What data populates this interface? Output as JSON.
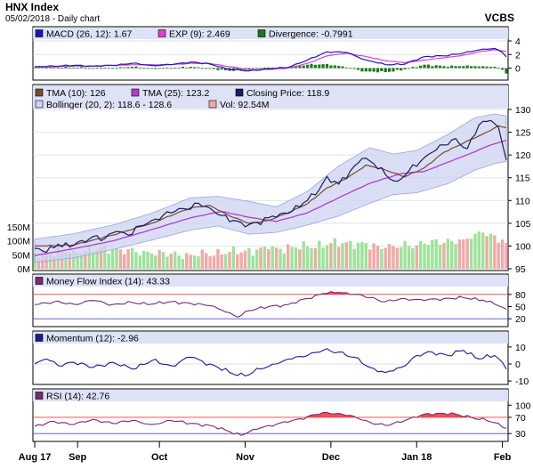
{
  "header": {
    "title": "HNX Index",
    "subtitle": "05/02/2018 - Daily chart",
    "brand": "VCBS"
  },
  "x_axis": {
    "labels": [
      {
        "text": "Aug 17",
        "idx": 0
      },
      {
        "text": "Sep",
        "idx": 11
      },
      {
        "text": "Oct",
        "idx": 32
      },
      {
        "text": "Nov",
        "idx": 54
      },
      {
        "text": "Dec",
        "idx": 76
      },
      {
        "text": "Jan 18",
        "idx": 98
      },
      {
        "text": "Feb",
        "idx": 120
      }
    ]
  },
  "colors": {
    "panel_bg": "#ffffff",
    "panel_border": "#000000",
    "closing": "#1c1c5c",
    "tma10": "#7a4a2a",
    "tma25": "#b43cc8",
    "bollinger_fill": "#cdd3f2",
    "bollinger_edge": "#9aa4de",
    "vol_up": "#9ee29a",
    "vol_down": "#f2a8a8",
    "macd": "#1a1ab4",
    "exp": "#e040d0",
    "divergence": "#1a7a1a",
    "mfi": "#7a2a6a",
    "mfi_fill": "#ff4a5a",
    "momentum": "#1a1a9a",
    "rsi": "#7a2a6a",
    "rsi_fill": "#ff4a5a",
    "ref_red": "#e04040",
    "ref_blue": "#4a4ad0"
  },
  "chart_data": [
    {
      "type": "line",
      "title": "MACD",
      "legend": [
        {
          "label": "MACD (26, 12): 1.67",
          "color": "#1a1ab4"
        },
        {
          "label": "EXP (9): 2.469",
          "color": "#e040d0"
        },
        {
          "label": "Divergence: -0.7991",
          "color": "#1a7a1a"
        }
      ],
      "ylim": [
        -1.5,
        4
      ],
      "yticks": [
        {
          "v": 4,
          "label": "4"
        },
        {
          "v": 2,
          "label": "2"
        },
        {
          "v": 0,
          "label": "0"
        }
      ],
      "macd_keys": [
        [
          0,
          0.2
        ],
        [
          5,
          0.3
        ],
        [
          10,
          0.4
        ],
        [
          15,
          0.3
        ],
        [
          20,
          0.4
        ],
        [
          25,
          0.7
        ],
        [
          30,
          0.4
        ],
        [
          35,
          0.5
        ],
        [
          40,
          0.9
        ],
        [
          45,
          0.6
        ],
        [
          50,
          -0.2
        ],
        [
          55,
          -0.4
        ],
        [
          60,
          -0.1
        ],
        [
          65,
          0.1
        ],
        [
          70,
          1.2
        ],
        [
          75,
          2.4
        ],
        [
          80,
          2.3
        ],
        [
          85,
          1.2
        ],
        [
          90,
          0.5
        ],
        [
          95,
          0.6
        ],
        [
          100,
          1.7
        ],
        [
          105,
          1.8
        ],
        [
          110,
          2.2
        ],
        [
          115,
          2.8
        ],
        [
          118,
          2.9
        ],
        [
          120,
          2.3
        ],
        [
          121,
          1.67
        ]
      ],
      "exp_keys": [
        [
          0,
          0.1
        ],
        [
          5,
          0.2
        ],
        [
          10,
          0.3
        ],
        [
          15,
          0.3
        ],
        [
          20,
          0.4
        ],
        [
          25,
          0.5
        ],
        [
          30,
          0.5
        ],
        [
          35,
          0.5
        ],
        [
          40,
          0.7
        ],
        [
          45,
          0.7
        ],
        [
          50,
          0.2
        ],
        [
          55,
          -0.2
        ],
        [
          60,
          -0.2
        ],
        [
          65,
          0.0
        ],
        [
          70,
          0.7
        ],
        [
          75,
          1.8
        ],
        [
          80,
          2.2
        ],
        [
          85,
          1.7
        ],
        [
          90,
          1.1
        ],
        [
          95,
          0.8
        ],
        [
          100,
          1.2
        ],
        [
          105,
          1.5
        ],
        [
          110,
          1.9
        ],
        [
          115,
          2.5
        ],
        [
          118,
          2.7
        ],
        [
          120,
          2.55
        ],
        [
          121,
          2.469
        ]
      ]
    },
    {
      "type": "line",
      "title": "Price",
      "legend": [
        {
          "label": "TMA (10): 126",
          "color": "#7a4a2a"
        },
        {
          "label": "TMA (25): 123.2",
          "color": "#b43cc8"
        },
        {
          "label": "Closing Price: 118.9",
          "color": "#1c1c5c"
        },
        {
          "label": "Bollinger (20, 2): 118.6 - 128.6",
          "color": "#cdd3f2"
        },
        {
          "label": "Vol: 92.54M",
          "color": "#f2a8a8"
        }
      ],
      "ylim": [
        95,
        130
      ],
      "yticks": [
        {
          "v": 130,
          "label": "130"
        },
        {
          "v": 125,
          "label": "125"
        },
        {
          "v": 120,
          "label": "120"
        },
        {
          "v": 115,
          "label": "115"
        },
        {
          "v": 110,
          "label": "110"
        },
        {
          "v": 105,
          "label": "105"
        },
        {
          "v": 100,
          "label": "100"
        },
        {
          "v": 95,
          "label": "95"
        }
      ],
      "vol_ticks": [
        {
          "v": 150,
          "label": "150M"
        },
        {
          "v": 100,
          "label": "100M"
        },
        {
          "v": 50,
          "label": "50M"
        },
        {
          "v": 0,
          "label": "0M"
        }
      ],
      "close_keys": [
        [
          0,
          99.5
        ],
        [
          3,
          98.6
        ],
        [
          6,
          100.4
        ],
        [
          9,
          99.8
        ],
        [
          12,
          101.2
        ],
        [
          15,
          102.1
        ],
        [
          18,
          101.6
        ],
        [
          21,
          103.2
        ],
        [
          24,
          102.4
        ],
        [
          27,
          104.4
        ],
        [
          30,
          105.6
        ],
        [
          33,
          106.8
        ],
        [
          36,
          107.6
        ],
        [
          39,
          108.1
        ],
        [
          42,
          109.4
        ],
        [
          45,
          108.3
        ],
        [
          48,
          106.7
        ],
        [
          51,
          105.6
        ],
        [
          54,
          104.2
        ],
        [
          57,
          105.2
        ],
        [
          60,
          106.2
        ],
        [
          63,
          107.1
        ],
        [
          66,
          107.6
        ],
        [
          69,
          109.5
        ],
        [
          72,
          111.2
        ],
        [
          75,
          115.3
        ],
        [
          78,
          113.6
        ],
        [
          81,
          116.5
        ],
        [
          84,
          119.2
        ],
        [
          87,
          118.1
        ],
        [
          90,
          115.7
        ],
        [
          93,
          114.2
        ],
        [
          96,
          116.5
        ],
        [
          99,
          118.6
        ],
        [
          102,
          120.6
        ],
        [
          105,
          122.2
        ],
        [
          108,
          123.6
        ],
        [
          111,
          121.4
        ],
        [
          114,
          126.6
        ],
        [
          117,
          127.6
        ],
        [
          119,
          126.1
        ],
        [
          121,
          118.9
        ]
      ],
      "tma10_keys": [
        [
          0,
          100.0
        ],
        [
          10,
          100.2
        ],
        [
          20,
          102.4
        ],
        [
          30,
          105.0
        ],
        [
          40,
          108.4
        ],
        [
          45,
          108.9
        ],
        [
          50,
          106.6
        ],
        [
          55,
          105.0
        ],
        [
          60,
          105.6
        ],
        [
          65,
          107.3
        ],
        [
          70,
          109.3
        ],
        [
          75,
          112.8
        ],
        [
          80,
          114.8
        ],
        [
          85,
          117.8
        ],
        [
          90,
          116.7
        ],
        [
          95,
          115.2
        ],
        [
          100,
          117.2
        ],
        [
          105,
          120.6
        ],
        [
          110,
          122.6
        ],
        [
          115,
          124.6
        ],
        [
          119,
          126.4
        ],
        [
          121,
          126.0
        ]
      ],
      "tma25_keys": [
        [
          0,
          97.9
        ],
        [
          10,
          99.4
        ],
        [
          20,
          101.1
        ],
        [
          30,
          103.6
        ],
        [
          40,
          106.2
        ],
        [
          48,
          107.6
        ],
        [
          55,
          106.3
        ],
        [
          62,
          105.4
        ],
        [
          70,
          107.3
        ],
        [
          78,
          110.6
        ],
        [
          86,
          113.8
        ],
        [
          94,
          115.9
        ],
        [
          100,
          116.4
        ],
        [
          106,
          118.4
        ],
        [
          112,
          120.4
        ],
        [
          117,
          122.2
        ],
        [
          121,
          123.2
        ]
      ],
      "bb_keys": [
        [
          0,
          96.4,
          101.5
        ],
        [
          10,
          97.4,
          102.7
        ],
        [
          20,
          99.2,
          104.6
        ],
        [
          30,
          101.3,
          107.2
        ],
        [
          40,
          103.5,
          110.6
        ],
        [
          47,
          104.4,
          110.9
        ],
        [
          55,
          102.6,
          109.8
        ],
        [
          62,
          103.0,
          108.6
        ],
        [
          70,
          104.6,
          112.0
        ],
        [
          78,
          106.6,
          117.6
        ],
        [
          86,
          109.4,
          121.6
        ],
        [
          92,
          111.3,
          120.2
        ],
        [
          98,
          111.7,
          121.0
        ],
        [
          106,
          113.7,
          124.5
        ],
        [
          113,
          116.7,
          128.2
        ],
        [
          118,
          118.1,
          129.0
        ],
        [
          121,
          118.6,
          128.6
        ]
      ],
      "vol_keys": [
        [
          0,
          55
        ],
        [
          10,
          65
        ],
        [
          20,
          70
        ],
        [
          30,
          55
        ],
        [
          40,
          50
        ],
        [
          50,
          60
        ],
        [
          60,
          70
        ],
        [
          70,
          80
        ],
        [
          80,
          95
        ],
        [
          90,
          75
        ],
        [
          100,
          90
        ],
        [
          110,
          105
        ],
        [
          115,
          130
        ],
        [
          121,
          92.54
        ]
      ]
    },
    {
      "type": "area",
      "title": "Money Flow Index",
      "legend": [
        {
          "label": "Money Flow Index (14): 43.33",
          "color": "#7a2a6a"
        }
      ],
      "ylim": [
        5,
        95
      ],
      "yticks": [
        {
          "v": 80,
          "label": "80"
        },
        {
          "v": 50,
          "label": "50"
        },
        {
          "v": 20,
          "label": "20"
        }
      ],
      "ref": [
        80,
        20
      ],
      "keys": [
        [
          0,
          55
        ],
        [
          5,
          62
        ],
        [
          10,
          56
        ],
        [
          15,
          65
        ],
        [
          20,
          55
        ],
        [
          25,
          60
        ],
        [
          30,
          56
        ],
        [
          35,
          62
        ],
        [
          40,
          58
        ],
        [
          45,
          52
        ],
        [
          50,
          35
        ],
        [
          52,
          24
        ],
        [
          55,
          40
        ],
        [
          60,
          50
        ],
        [
          65,
          55
        ],
        [
          70,
          70
        ],
        [
          74,
          82
        ],
        [
          78,
          85
        ],
        [
          82,
          80
        ],
        [
          86,
          72
        ],
        [
          90,
          62
        ],
        [
          95,
          70
        ],
        [
          100,
          65
        ],
        [
          105,
          70
        ],
        [
          110,
          72
        ],
        [
          115,
          66
        ],
        [
          118,
          56
        ],
        [
          121,
          43.33
        ]
      ]
    },
    {
      "type": "line",
      "title": "Momentum",
      "legend": [
        {
          "label": "Momentum (12): -2.96",
          "color": "#1a1a9a"
        }
      ],
      "ylim": [
        -11,
        11
      ],
      "yticks": [
        {
          "v": 10,
          "label": "10"
        },
        {
          "v": 0,
          "label": "0"
        },
        {
          "v": -10,
          "label": "-10"
        }
      ],
      "keys": [
        [
          0,
          0
        ],
        [
          3,
          3
        ],
        [
          6,
          -1
        ],
        [
          10,
          1
        ],
        [
          15,
          -2
        ],
        [
          20,
          1
        ],
        [
          25,
          -3
        ],
        [
          30,
          2
        ],
        [
          35,
          -1
        ],
        [
          40,
          4
        ],
        [
          45,
          0
        ],
        [
          50,
          -5
        ],
        [
          54,
          -7
        ],
        [
          58,
          -3
        ],
        [
          62,
          0
        ],
        [
          66,
          3
        ],
        [
          70,
          5
        ],
        [
          74,
          8
        ],
        [
          78,
          7
        ],
        [
          82,
          4
        ],
        [
          86,
          -2
        ],
        [
          90,
          -5
        ],
        [
          94,
          -2
        ],
        [
          98,
          5
        ],
        [
          102,
          7
        ],
        [
          106,
          5
        ],
        [
          110,
          8
        ],
        [
          114,
          3
        ],
        [
          118,
          5
        ],
        [
          120,
          1
        ],
        [
          121,
          -2.96
        ]
      ]
    },
    {
      "type": "area",
      "title": "RSI",
      "legend": [
        {
          "label": "RSI (14): 42.76",
          "color": "#7a2a6a"
        }
      ],
      "ylim": [
        15,
        105
      ],
      "yticks": [
        {
          "v": 100,
          "label": "100"
        },
        {
          "v": 70,
          "label": "70"
        },
        {
          "v": 30,
          "label": "30"
        }
      ],
      "ref": [
        70,
        30
      ],
      "keys": [
        [
          0,
          48
        ],
        [
          5,
          60
        ],
        [
          10,
          52
        ],
        [
          15,
          65
        ],
        [
          20,
          55
        ],
        [
          25,
          62
        ],
        [
          30,
          52
        ],
        [
          35,
          62
        ],
        [
          40,
          55
        ],
        [
          45,
          50
        ],
        [
          50,
          35
        ],
        [
          53,
          25
        ],
        [
          56,
          40
        ],
        [
          60,
          50
        ],
        [
          65,
          58
        ],
        [
          70,
          72
        ],
        [
          74,
          82
        ],
        [
          78,
          80
        ],
        [
          82,
          72
        ],
        [
          86,
          58
        ],
        [
          90,
          50
        ],
        [
          95,
          62
        ],
        [
          100,
          78
        ],
        [
          104,
          80
        ],
        [
          108,
          78
        ],
        [
          112,
          70
        ],
        [
          116,
          62
        ],
        [
          119,
          55
        ],
        [
          121,
          42.76
        ]
      ]
    }
  ]
}
